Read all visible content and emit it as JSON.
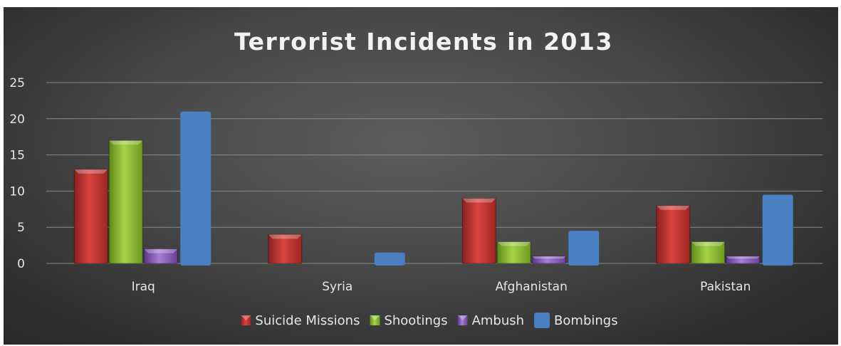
{
  "chart_data": {
    "type": "bar",
    "title": "Terrorist Incidents in 2013",
    "xlabel": "",
    "ylabel": "",
    "categories": [
      "Iraq",
      "Syria",
      "Afghanistan",
      "Pakistan"
    ],
    "series": [
      {
        "name": "Suicide Missions",
        "values": [
          13,
          4,
          9,
          8
        ],
        "color": "#c0312c"
      },
      {
        "name": "Shootings",
        "values": [
          17,
          0,
          3,
          3
        ],
        "color": "#8dba2f"
      },
      {
        "name": "Ambush",
        "values": [
          2,
          0,
          1,
          1
        ],
        "color": "#8a57b8"
      },
      {
        "name": "Bombings",
        "values": [
          21,
          1.5,
          4.5,
          9.5
        ],
        "color": "#4a7fc1"
      }
    ],
    "ylim": [
      0,
      25
    ],
    "yticks": [
      0,
      5,
      10,
      15,
      20,
      25
    ],
    "grid": true,
    "legend": "bottom"
  }
}
